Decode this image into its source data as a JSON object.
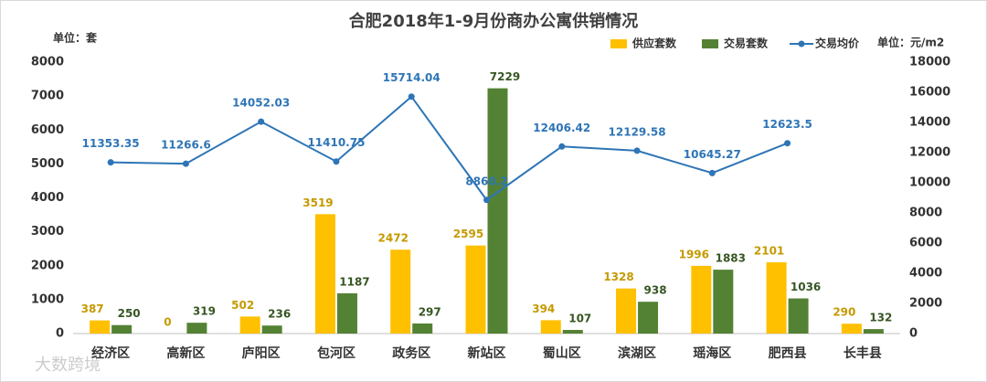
{
  "chart_data": {
    "type": "bar_line",
    "title": "合肥2018年1-9月份商办公寓供销情况",
    "y_unit": "单位：套",
    "y2_unit": "单位：元/m2",
    "watermark": "大数跨境",
    "categories": [
      "经济区",
      "高新区",
      "庐阳区",
      "包河区",
      "政务区",
      "新站区",
      "蜀山区",
      "滨湖区",
      "瑶海区",
      "肥西县",
      "长丰县"
    ],
    "series": [
      {
        "name": "供应套数",
        "color": "#FFC000",
        "type": "bar",
        "values": [
          387,
          0,
          502,
          3519,
          2472,
          2595,
          394,
          1328,
          1996,
          2101,
          290
        ]
      },
      {
        "name": "交易套数",
        "color": "#548235",
        "type": "bar",
        "values": [
          250,
          319,
          236,
          1187,
          297,
          7229,
          107,
          938,
          1883,
          1036,
          132
        ]
      },
      {
        "name": "交易均价",
        "color": "#2E75B6",
        "type": "line",
        "axis": "y2",
        "values": [
          11353.35,
          11266.6,
          14052.03,
          11410.75,
          15714.04,
          8860.2,
          12406.42,
          12129.58,
          10645.27,
          12623.5,
          null
        ]
      }
    ],
    "ylim": [
      0,
      8000
    ],
    "yticks": [
      0,
      1000,
      2000,
      3000,
      4000,
      5000,
      6000,
      7000,
      8000
    ],
    "y2lim": [
      0,
      18000
    ],
    "y2ticks": [
      0,
      2000,
      4000,
      6000,
      8000,
      10000,
      12000,
      14000,
      16000,
      18000
    ]
  }
}
